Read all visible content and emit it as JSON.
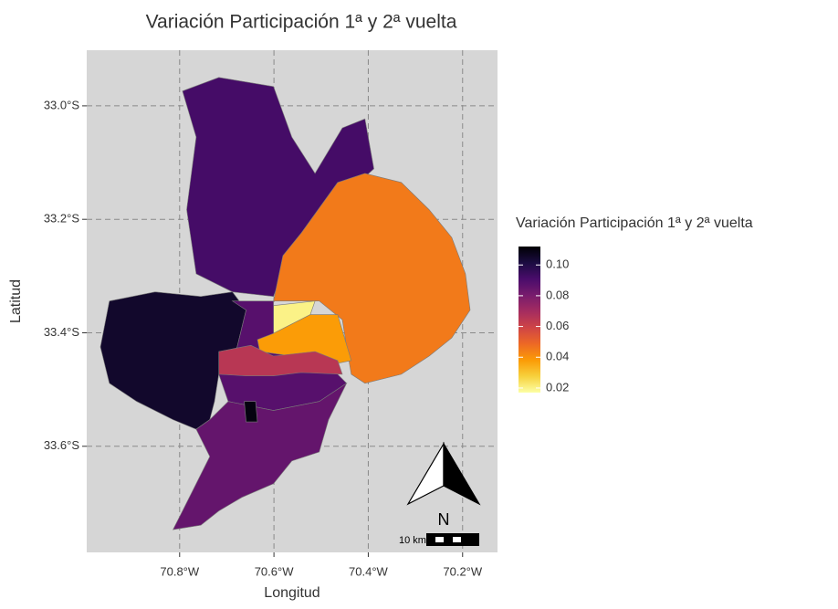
{
  "chart_data": {
    "type": "choropleth",
    "title": "Variación Participación 1ª y 2ª vuelta",
    "xlabel": "Longitud",
    "ylabel": "Latitud",
    "xlim": [
      -70.997,
      -70.126
    ],
    "ylim": [
      -33.787,
      -32.902
    ],
    "xticks": [
      {
        "value": -70.8,
        "label": "70.8°W"
      },
      {
        "value": -70.6,
        "label": "70.6°W"
      },
      {
        "value": -70.4,
        "label": "70.4°W"
      },
      {
        "value": -70.2,
        "label": "70.2°W"
      }
    ],
    "yticks": [
      {
        "value": -33.0,
        "label": "33.0°S"
      },
      {
        "value": -33.2,
        "label": "33.2°S"
      },
      {
        "value": -33.4,
        "label": "33.4°S"
      },
      {
        "value": -33.6,
        "label": "33.6°S"
      }
    ],
    "grid": true,
    "legend_title": "Variación Participación 1ª y 2ª vuelta",
    "color_limits": [
      0.017,
      0.112
    ],
    "color_ticks": [
      {
        "value": 0.1,
        "label": "0.10"
      },
      0.08,
      0.06,
      0.04,
      0.02
    ],
    "colors": [
      "#fcffa4",
      "#f7d13d",
      "#fb9b06",
      "#ed6925",
      "#cf4446",
      "#a52c60",
      "#781c6d",
      "#4a0c6b",
      "#1b0c41",
      "#000004"
    ],
    "north_label": "N",
    "scale_label": "10 km",
    "regions": [
      {
        "value": 0.092,
        "lon": [
          -70.794,
          -70.717,
          -70.601,
          -70.562,
          -70.513,
          -70.455,
          -70.407,
          -70.388,
          -70.484,
          -70.562,
          -70.601,
          -70.688,
          -70.765,
          -70.785,
          -70.765
        ],
        "lat": [
          -32.974,
          -32.95,
          -32.966,
          -33.055,
          -33.119,
          -33.039,
          -33.023,
          -33.111,
          -33.183,
          -33.248,
          -33.336,
          -33.328,
          -33.296,
          -33.183,
          -33.055
        ]
      },
      {
        "value": 0.045,
        "lon": [
          -70.465,
          -70.407,
          -70.33,
          -70.271,
          -70.223,
          -70.194,
          -70.184,
          -70.223,
          -70.271,
          -70.33,
          -70.407,
          -70.436,
          -70.446,
          -70.455,
          -70.504,
          -70.601,
          -70.581,
          -70.542
        ],
        "lat": [
          -33.135,
          -33.119,
          -33.135,
          -33.183,
          -33.232,
          -33.296,
          -33.36,
          -33.409,
          -33.441,
          -33.473,
          -33.489,
          -33.473,
          -33.425,
          -33.377,
          -33.344,
          -33.344,
          -33.264,
          -33.224
        ]
      },
      {
        "value": 0.02,
        "lon": [
          -70.601,
          -70.513,
          -70.523,
          -70.601
        ],
        "lat": [
          -33.352,
          -33.344,
          -33.368,
          -33.401
        ]
      },
      {
        "value": 0.038,
        "lon": [
          -70.601,
          -70.523,
          -70.465,
          -70.436,
          -70.484,
          -70.562,
          -70.63,
          -70.635
        ],
        "lat": [
          -33.401,
          -33.368,
          -33.368,
          -33.449,
          -33.457,
          -33.441,
          -33.433,
          -33.412
        ]
      },
      {
        "value": 0.105,
        "lon": [
          -70.949,
          -70.852,
          -70.755,
          -70.688,
          -70.659,
          -70.678,
          -70.717,
          -70.726,
          -70.736,
          -70.765,
          -70.814,
          -70.891,
          -70.949,
          -70.968
        ],
        "lat": [
          -33.344,
          -33.328,
          -33.336,
          -33.328,
          -33.36,
          -33.425,
          -33.473,
          -33.521,
          -33.553,
          -33.57,
          -33.553,
          -33.521,
          -33.489,
          -33.425
        ]
      },
      {
        "value": 0.088,
        "lon": [
          -70.688,
          -70.601,
          -70.601,
          -70.635,
          -70.63,
          -70.562,
          -70.484,
          -70.446,
          -70.504,
          -70.601,
          -70.697,
          -70.717,
          -70.678,
          -70.659
        ],
        "lat": [
          -33.344,
          -33.344,
          -33.401,
          -33.412,
          -33.433,
          -33.441,
          -33.457,
          -33.489,
          -33.521,
          -33.537,
          -33.521,
          -33.473,
          -33.425,
          -33.36
        ]
      },
      {
        "value": 0.085,
        "lon": [
          -70.736,
          -70.697,
          -70.601,
          -70.504,
          -70.446,
          -70.484,
          -70.504,
          -70.562,
          -70.601,
          -70.668,
          -70.717,
          -70.755,
          -70.814,
          -70.794,
          -70.765,
          -70.736,
          -70.765
        ],
        "lat": [
          -33.553,
          -33.521,
          -33.537,
          -33.521,
          -33.489,
          -33.553,
          -33.61,
          -33.626,
          -33.666,
          -33.69,
          -33.714,
          -33.739,
          -33.747,
          -33.714,
          -33.666,
          -33.618,
          -33.57
        ]
      },
      {
        "value": 0.065,
        "lon": [
          -70.717,
          -70.649,
          -70.601,
          -70.513,
          -70.465,
          -70.455,
          -70.542,
          -70.601,
          -70.659,
          -70.717
        ],
        "lat": [
          -33.433,
          -33.422,
          -33.441,
          -33.433,
          -33.449,
          -33.473,
          -33.47,
          -33.476,
          -33.476,
          -33.473
        ]
      },
      {
        "value": 0.11,
        "lon": [
          -70.663,
          -70.639,
          -70.635,
          -70.659
        ],
        "lat": [
          -33.521,
          -33.521,
          -33.557,
          -33.557
        ]
      }
    ]
  }
}
